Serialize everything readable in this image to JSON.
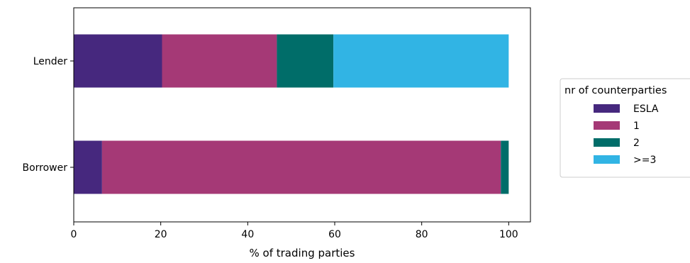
{
  "chart_data": {
    "type": "bar",
    "orientation": "horizontal",
    "stacked": true,
    "categories": [
      "Borrower",
      "Lender"
    ],
    "series": [
      {
        "name": "ESLA",
        "values": [
          6.5,
          20.3
        ],
        "color": "#46287e"
      },
      {
        "name": "1",
        "values": [
          91.7,
          26.4
        ],
        "color": "#a53976"
      },
      {
        "name": "2",
        "values": [
          1.8,
          13.0
        ],
        "color": "#006d69"
      },
      {
        "name": ">=3",
        "values": [
          0.0,
          40.3
        ],
        "color": "#31b4e4"
      }
    ],
    "xlabel": "% of trading parties",
    "ylabel": "",
    "xlim": [
      0,
      105
    ],
    "xticks": [
      0,
      20,
      40,
      60,
      80,
      100
    ],
    "grid": false,
    "legend": {
      "title": "nr of counterparties",
      "placement": "center-right, outside plot"
    }
  }
}
